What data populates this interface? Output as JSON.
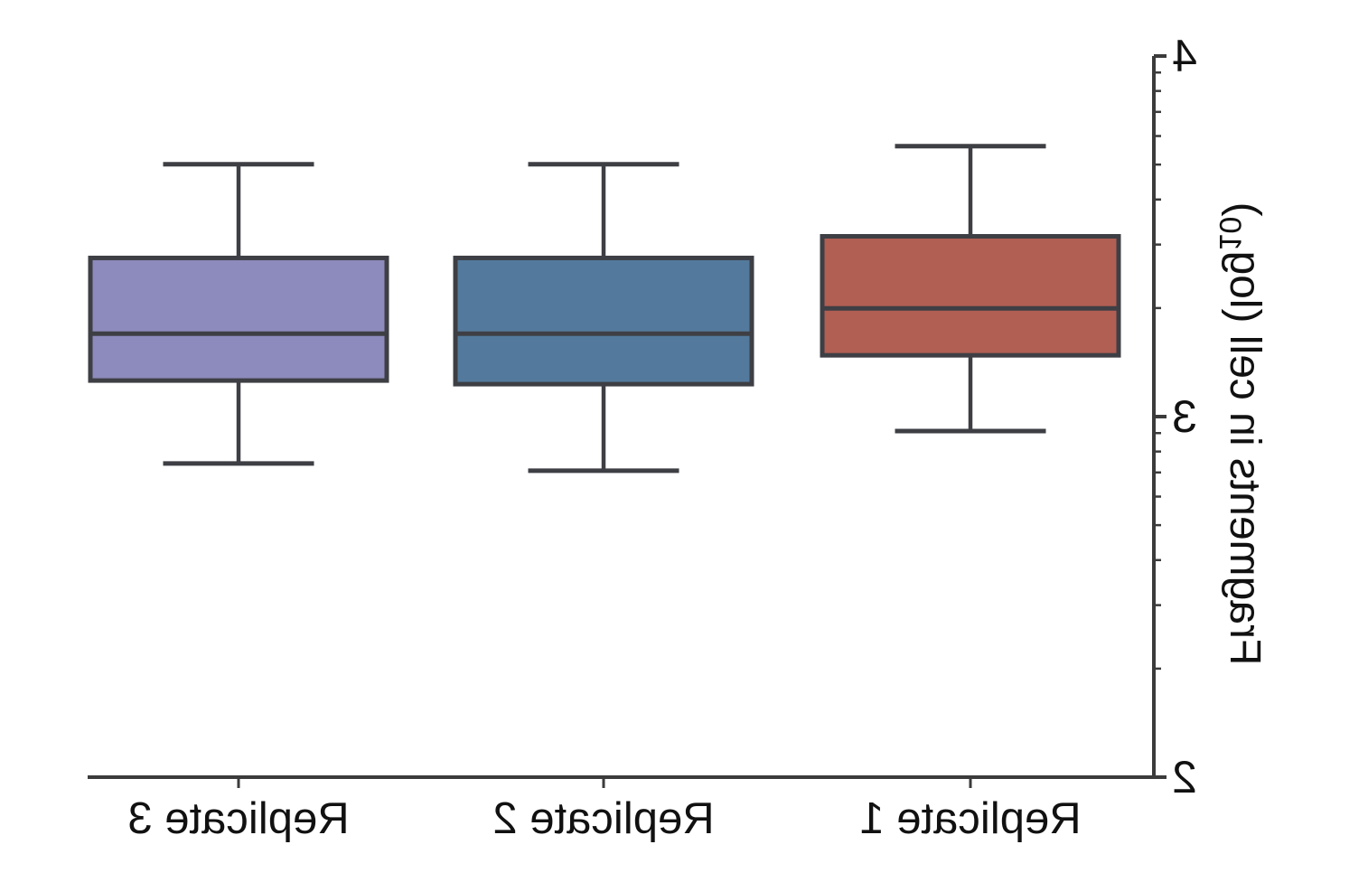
{
  "chart_data": {
    "type": "boxplot",
    "title": "",
    "xlabel": "",
    "ylabel": {
      "pre": "Fragments in cell (log",
      "sub": "10",
      "post": ")"
    },
    "y_scale": "log10",
    "ylim_exponents": [
      2,
      4
    ],
    "ytick_labels": [
      "2",
      "3",
      "4"
    ],
    "minor_ticks": "log-decade subdivisions (2-9) between each labeled decade",
    "categories": [
      "Replicate 1",
      "Replicate 2",
      "Replicate 3"
    ],
    "series": [
      {
        "name": "Replicate 1",
        "color": "#b15e53",
        "whisker_low": 2.96,
        "q1": 3.17,
        "median": 3.3,
        "q3": 3.5,
        "whisker_high": 3.75,
        "outliers": []
      },
      {
        "name": "Replicate 2",
        "color": "#537a9d",
        "whisker_low": 2.85,
        "q1": 3.09,
        "median": 3.23,
        "q3": 3.44,
        "whisker_high": 3.7,
        "outliers": []
      },
      {
        "name": "Replicate 3",
        "color": "#8d8abd",
        "whisker_low": 2.87,
        "q1": 3.1,
        "median": 3.23,
        "q3": 3.44,
        "whisker_high": 3.7,
        "outliers": []
      }
    ],
    "edge_color": "#3e3f44",
    "axis_color": "#3b3b3b",
    "text_color": "#111111",
    "grid": false,
    "legend": "none",
    "mirrored_horizontally": true
  }
}
